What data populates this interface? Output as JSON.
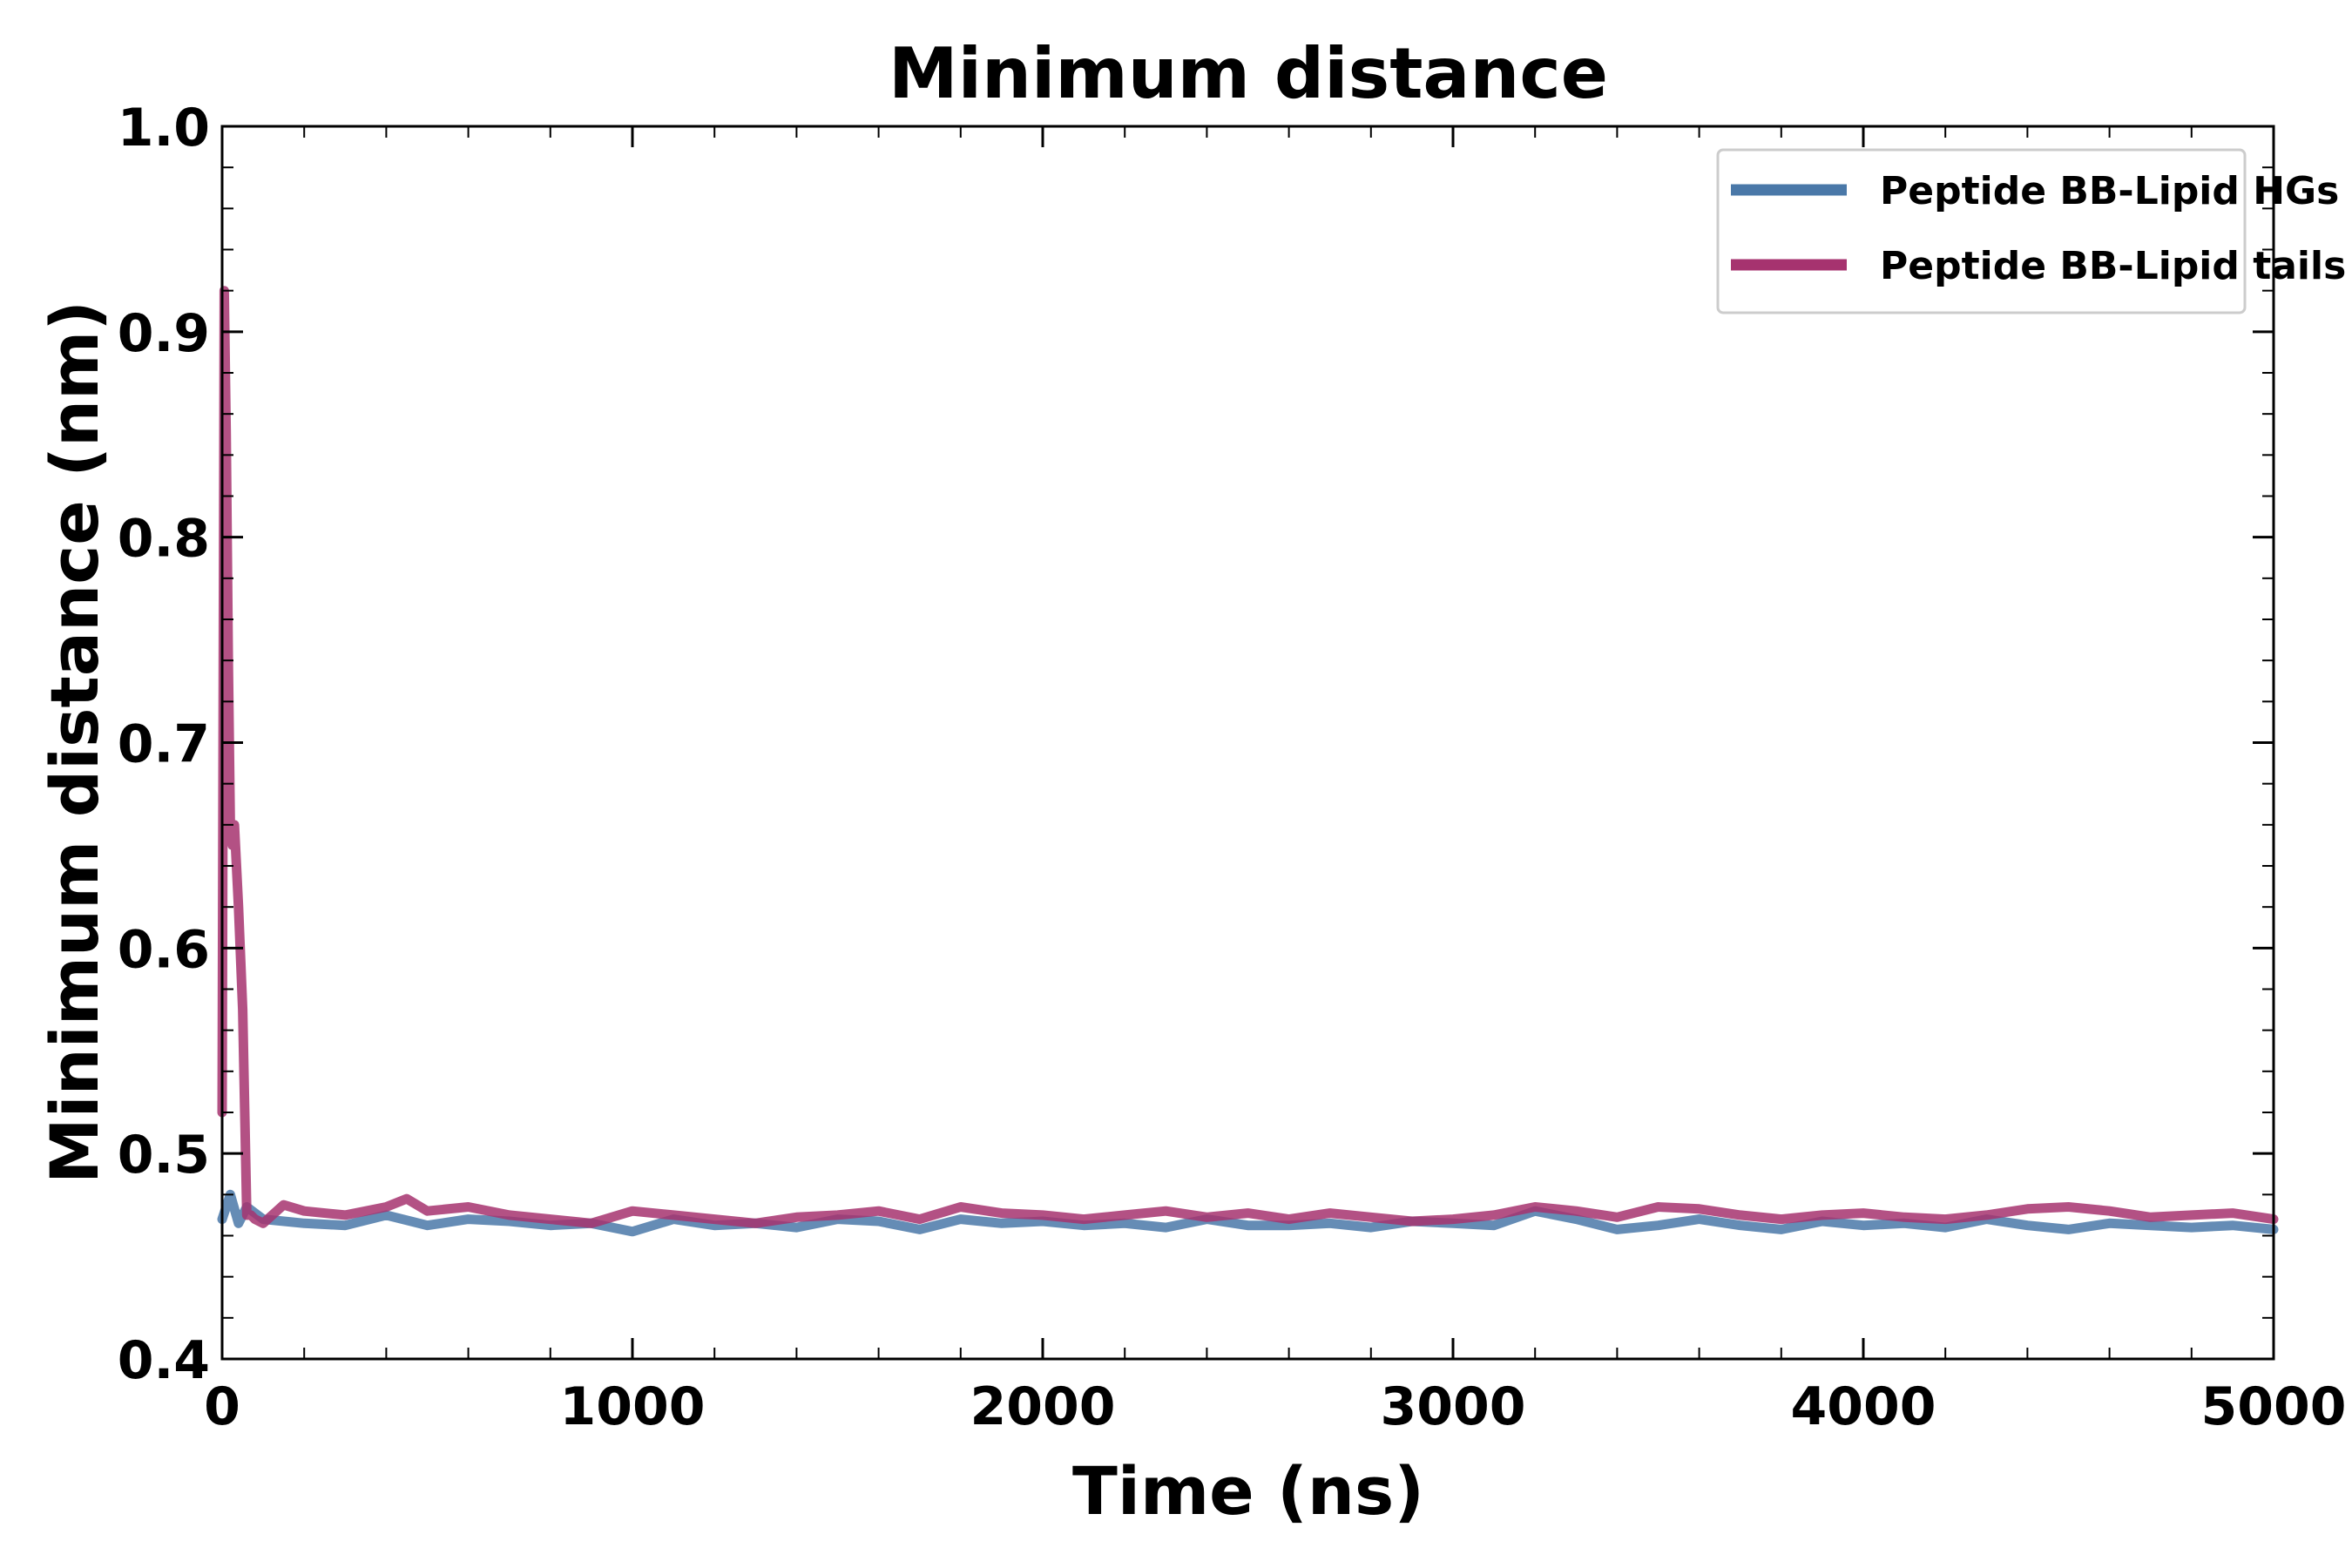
{
  "chart_data": {
    "type": "line",
    "title": "Minimum distance",
    "xlabel": "Time (ns)",
    "ylabel": "Minimum distance (nm)",
    "xlim": [
      0,
      5000
    ],
    "ylim": [
      0.4,
      1.0
    ],
    "xticks": [
      0,
      1000,
      2000,
      3000,
      4000,
      5000
    ],
    "xtick_labels": [
      "0",
      "1000",
      "2000",
      "3000",
      "4000",
      "5000"
    ],
    "yticks": [
      0.4,
      0.5,
      0.6,
      0.7,
      0.8,
      0.9,
      1.0
    ],
    "ytick_labels": [
      "0.4",
      "0.5",
      "0.6",
      "0.7",
      "0.8",
      "0.9",
      "1.0"
    ],
    "grid": false,
    "legend_position": "top-right",
    "series": [
      {
        "name": "Peptide BB-Lipid HGs",
        "color": "#4a78a8",
        "x": [
          0,
          20,
          40,
          60,
          100,
          200,
          300,
          400,
          500,
          600,
          700,
          800,
          900,
          1000,
          1100,
          1200,
          1300,
          1400,
          1500,
          1600,
          1700,
          1800,
          1900,
          2000,
          2100,
          2200,
          2300,
          2400,
          2500,
          2600,
          2700,
          2800,
          2900,
          3000,
          3100,
          3200,
          3300,
          3400,
          3500,
          3600,
          3700,
          3800,
          3900,
          4000,
          4100,
          4200,
          4300,
          4400,
          4500,
          4600,
          4700,
          4800,
          4900,
          5000
        ],
        "values": [
          0.468,
          0.48,
          0.466,
          0.474,
          0.468,
          0.466,
          0.465,
          0.47,
          0.465,
          0.468,
          0.467,
          0.465,
          0.466,
          0.462,
          0.468,
          0.465,
          0.466,
          0.464,
          0.468,
          0.467,
          0.463,
          0.468,
          0.466,
          0.467,
          0.465,
          0.466,
          0.464,
          0.468,
          0.465,
          0.465,
          0.466,
          0.464,
          0.467,
          0.466,
          0.465,
          0.472,
          0.468,
          0.463,
          0.465,
          0.468,
          0.465,
          0.463,
          0.467,
          0.465,
          0.466,
          0.464,
          0.468,
          0.465,
          0.463,
          0.466,
          0.465,
          0.464,
          0.465,
          0.463
        ]
      },
      {
        "name": "Peptide BB-Lipid tails",
        "color": "#a6336f",
        "x": [
          0,
          5,
          10,
          15,
          20,
          25,
          30,
          40,
          50,
          60,
          70,
          80,
          100,
          150,
          200,
          300,
          400,
          450,
          500,
          600,
          700,
          800,
          900,
          1000,
          1100,
          1200,
          1300,
          1400,
          1500,
          1600,
          1700,
          1800,
          1900,
          2000,
          2100,
          2200,
          2300,
          2400,
          2500,
          2600,
          2700,
          2800,
          2900,
          3000,
          3100,
          3200,
          3300,
          3400,
          3500,
          3600,
          3700,
          3800,
          3900,
          4000,
          4100,
          4200,
          4300,
          4400,
          4500,
          4600,
          4700,
          4800,
          4900,
          5000
        ],
        "values": [
          0.52,
          0.92,
          0.85,
          0.74,
          0.66,
          0.65,
          0.66,
          0.62,
          0.57,
          0.47,
          0.47,
          0.468,
          0.466,
          0.475,
          0.472,
          0.47,
          0.474,
          0.478,
          0.472,
          0.474,
          0.47,
          0.468,
          0.466,
          0.472,
          0.47,
          0.468,
          0.466,
          0.469,
          0.47,
          0.472,
          0.468,
          0.474,
          0.471,
          0.47,
          0.468,
          0.47,
          0.472,
          0.469,
          0.471,
          0.468,
          0.471,
          0.469,
          0.467,
          0.468,
          0.47,
          0.474,
          0.472,
          0.469,
          0.474,
          0.473,
          0.47,
          0.468,
          0.47,
          0.471,
          0.469,
          0.468,
          0.47,
          0.473,
          0.474,
          0.472,
          0.469,
          0.47,
          0.471,
          0.468
        ]
      }
    ]
  }
}
